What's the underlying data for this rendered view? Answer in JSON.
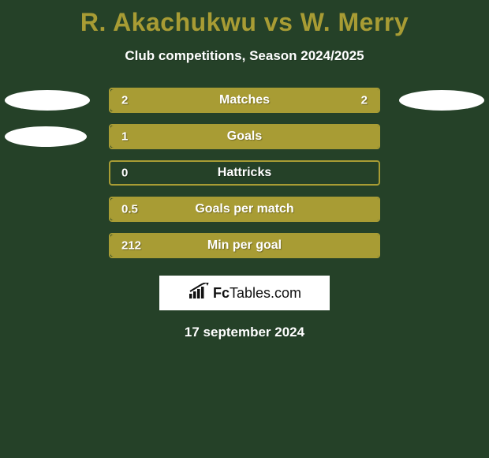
{
  "background_color": "#254128",
  "title": {
    "text": "R. Akachukwu vs W. Merry",
    "color": "#a89c34",
    "fontsize": 32
  },
  "subtitle": {
    "text": "Club competitions, Season 2024/2025",
    "color": "#ffffff",
    "fontsize": 17
  },
  "bar": {
    "track_width": 344,
    "track_height": 32,
    "track_border_color": "#a89c34",
    "track_fill_color": "#254128",
    "fill_color": "#a89c34",
    "value_text_color": "#ffffff",
    "label_text_color": "#ffffff"
  },
  "oval": {
    "color": "#ffffff",
    "height": 26
  },
  "stats": [
    {
      "label": "Matches",
      "left_value": "2",
      "right_value": "2",
      "fill_pct": 100,
      "oval_left_width": 108,
      "oval_right_width": 108
    },
    {
      "label": "Goals",
      "left_value": "1",
      "right_value": "",
      "fill_pct": 100,
      "oval_left_width": 104,
      "oval_right_width": 0
    },
    {
      "label": "Hattricks",
      "left_value": "0",
      "right_value": "",
      "fill_pct": 0,
      "oval_left_width": 0,
      "oval_right_width": 0
    },
    {
      "label": "Goals per match",
      "left_value": "0.5",
      "right_value": "",
      "fill_pct": 100,
      "oval_left_width": 0,
      "oval_right_width": 0
    },
    {
      "label": "Min per goal",
      "left_value": "212",
      "right_value": "",
      "fill_pct": 100,
      "oval_left_width": 0,
      "oval_right_width": 0
    }
  ],
  "logo": {
    "box_bg": "#ffffff",
    "text_prefix": "Fc",
    "text_suffix": "Tables.com",
    "icon_color": "#111111"
  },
  "date": {
    "text": "17 september 2024",
    "color": "#ffffff",
    "fontsize": 17
  }
}
